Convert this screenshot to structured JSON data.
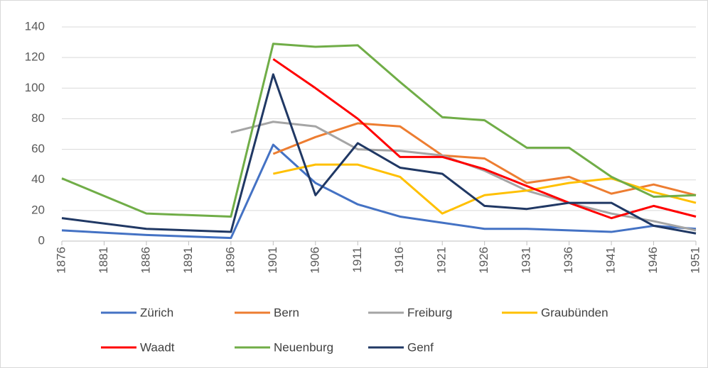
{
  "chart_data": {
    "type": "line",
    "x": [
      1876,
      1886,
      1896,
      1901,
      1906,
      1911,
      1916,
      1921,
      1926,
      1931,
      1936,
      1941,
      1946,
      1951
    ],
    "xlim": [
      1876,
      1951
    ],
    "xticks": [
      1876,
      1881,
      1886,
      1891,
      1896,
      1901,
      1906,
      1911,
      1916,
      1921,
      1926,
      1931,
      1936,
      1941,
      1946,
      1951
    ],
    "ylim": [
      0,
      140
    ],
    "yticks": [
      0,
      20,
      40,
      60,
      80,
      100,
      120,
      140
    ],
    "grid": true,
    "legend": "bottom",
    "series": [
      {
        "name": "Zürich",
        "color": "#4472c4",
        "values": [
          7,
          4,
          2,
          63,
          38,
          24,
          16,
          12,
          8,
          8,
          7,
          6,
          10,
          8
        ]
      },
      {
        "name": "Bern",
        "color": "#ed7d31",
        "values": [
          null,
          null,
          null,
          57,
          68,
          77,
          75,
          56,
          54,
          38,
          42,
          31,
          37,
          30
        ]
      },
      {
        "name": "Freiburg",
        "color": "#a5a5a5",
        "values": [
          null,
          null,
          71,
          78,
          75,
          60,
          59,
          56,
          46,
          33,
          25,
          18,
          13,
          7
        ]
      },
      {
        "name": "Graubünden",
        "color": "#ffc000",
        "values": [
          null,
          null,
          null,
          44,
          50,
          50,
          42,
          18,
          30,
          33,
          38,
          41,
          32,
          25
        ]
      },
      {
        "name": "Waadt",
        "color": "#ff0000",
        "values": [
          null,
          null,
          null,
          119,
          100,
          80,
          55,
          55,
          47,
          36,
          25,
          15,
          23,
          16
        ]
      },
      {
        "name": "Neuenburg",
        "color": "#70ad47",
        "values": [
          41,
          18,
          16,
          129,
          127,
          128,
          104,
          81,
          79,
          61,
          61,
          42,
          29,
          30
        ]
      },
      {
        "name": "Genf",
        "color": "#203864",
        "values": [
          15,
          8,
          6,
          109,
          30,
          64,
          48,
          44,
          23,
          21,
          25,
          25,
          10,
          5
        ]
      }
    ]
  }
}
